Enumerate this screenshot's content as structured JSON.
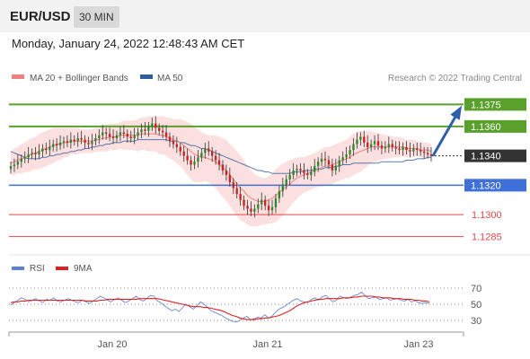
{
  "header": {
    "symbol": "EUR/USD",
    "timeframe": "30 MIN",
    "timestamp": "Monday, January 24, 2022 12:48:43 AM CET"
  },
  "legend": {
    "ma20_label": "MA 20 + Bollinger Bands",
    "ma50_label": "MA 50",
    "copyright": "Research © 2022 Trading Central",
    "ma20_color": "#f08080",
    "ma50_color": "#2e5e9e"
  },
  "rsi_legend": {
    "rsi_label": "RSI",
    "ma_label": "9MA",
    "rsi_color": "#5b7fd6",
    "ma_color": "#e02020"
  },
  "chart_data": [
    {
      "type": "candlestick",
      "title": "",
      "ylim": [
        1.1275,
        1.1385
      ],
      "x_ticks": [
        "Jan 20",
        "Jan 21",
        "Jan 23"
      ],
      "levels": [
        {
          "value": 1.1375,
          "label": "1.1375",
          "kind": "resistance",
          "color": "#5aa02c",
          "badge": true
        },
        {
          "value": 1.136,
          "label": "1.1360",
          "kind": "resistance",
          "color": "#5aa02c",
          "badge": true
        },
        {
          "value": 1.134,
          "label": "1.1340",
          "kind": "last",
          "color": "#333333",
          "badge": true
        },
        {
          "value": 1.132,
          "label": "1.1320",
          "kind": "support",
          "color": "#3f6fd8",
          "badge": true
        },
        {
          "value": 1.13,
          "label": "1.1300",
          "kind": "support",
          "color": "#e04848",
          "badge": false
        },
        {
          "value": 1.1285,
          "label": "1.1285",
          "kind": "support",
          "color": "#e04848",
          "badge": false
        }
      ],
      "close": [
        1.1333,
        1.1334,
        1.1336,
        1.1338,
        1.1339,
        1.1341,
        1.1342,
        1.1341,
        1.1343,
        1.1345,
        1.1344,
        1.1346,
        1.1348,
        1.1347,
        1.1349,
        1.135,
        1.1349,
        1.1351,
        1.135,
        1.1352,
        1.1351,
        1.1349,
        1.1348,
        1.135,
        1.1352,
        1.1354,
        1.1356,
        1.1355,
        1.1353,
        1.1352,
        1.1354,
        1.1356,
        1.1355,
        1.1353,
        1.1352,
        1.1354,
        1.1356,
        1.1358,
        1.1357,
        1.136,
        1.1362,
        1.1359,
        1.1357,
        1.1356,
        1.1353,
        1.135,
        1.1348,
        1.1346,
        1.1343,
        1.134,
        1.1337,
        1.1334,
        1.1336,
        1.1339,
        1.1342,
        1.1345,
        1.1343,
        1.134,
        1.1337,
        1.1334,
        1.133,
        1.1327,
        1.1322,
        1.1318,
        1.1314,
        1.131,
        1.1306,
        1.1304,
        1.1302,
        1.1304,
        1.1307,
        1.131,
        1.1306,
        1.1303,
        1.1305,
        1.1311,
        1.1316,
        1.132,
        1.1324,
        1.1327,
        1.133,
        1.1331,
        1.133,
        1.1328,
        1.1327,
        1.1329,
        1.1333,
        1.1336,
        1.1338,
        1.1337,
        1.1334,
        1.133,
        1.1333,
        1.1337,
        1.1339,
        1.1341,
        1.1344,
        1.1348,
        1.1351,
        1.1353,
        1.1349,
        1.1346,
        1.1348,
        1.135,
        1.1347,
        1.1345,
        1.1346,
        1.1348,
        1.1346,
        1.1345,
        1.1344,
        1.1346,
        1.1344,
        1.1343,
        1.1345,
        1.1344,
        1.1343,
        1.1342,
        1.1341,
        1.134
      ],
      "ma20": [
        1.1335,
        1.1336,
        1.1337,
        1.1338,
        1.1339,
        1.134,
        1.1341,
        1.1342,
        1.1343,
        1.1344,
        1.1345,
        1.1346,
        1.1347,
        1.1348,
        1.1348,
        1.1349,
        1.1349,
        1.135,
        1.135,
        1.135,
        1.135,
        1.135,
        1.135,
        1.135,
        1.1351,
        1.1351,
        1.1352,
        1.1352,
        1.1353,
        1.1353,
        1.1353,
        1.1354,
        1.1354,
        1.1354,
        1.1354,
        1.1354,
        1.1354,
        1.1355,
        1.1355,
        1.1355,
        1.1355,
        1.1355,
        1.1354,
        1.1354,
        1.1353,
        1.1352,
        1.1351,
        1.135,
        1.1349,
        1.1347,
        1.1345,
        1.1343,
        1.1341,
        1.134,
        1.1339,
        1.1339,
        1.1338,
        1.1337,
        1.1336,
        1.1334,
        1.1332,
        1.133,
        1.1327,
        1.1324,
        1.1321,
        1.1318,
        1.1316,
        1.1313,
        1.1311,
        1.131,
        1.1309,
        1.1309,
        1.1309,
        1.131,
        1.1311,
        1.1313,
        1.1315,
        1.1317,
        1.1319,
        1.1321,
        1.1323,
        1.1325,
        1.1326,
        1.1327,
        1.1328,
        1.1329,
        1.133,
        1.1331,
        1.1332,
        1.1333,
        1.1333,
        1.1334,
        1.1335,
        1.1336,
        1.1337,
        1.1338,
        1.1339,
        1.1341,
        1.1342,
        1.1343,
        1.1344,
        1.1345,
        1.1346,
        1.1346,
        1.1346,
        1.1346,
        1.1346,
        1.1346,
        1.1346,
        1.1346,
        1.1346,
        1.1346,
        1.1345,
        1.1345,
        1.1345,
        1.1345,
        1.1344,
        1.1344,
        1.1344,
        1.1343
      ],
      "ma50": [
        1.1343,
        1.1342,
        1.1341,
        1.134,
        1.1339,
        1.1338,
        1.1338,
        1.1338,
        1.1338,
        1.1339,
        1.1339,
        1.134,
        1.134,
        1.1341,
        1.1341,
        1.1342,
        1.1342,
        1.1343,
        1.1343,
        1.1344,
        1.1344,
        1.1345,
        1.1345,
        1.1346,
        1.1346,
        1.1347,
        1.1347,
        1.1348,
        1.1348,
        1.1349,
        1.1349,
        1.1349,
        1.135,
        1.135,
        1.135,
        1.135,
        1.1351,
        1.1351,
        1.1351,
        1.1351,
        1.1351,
        1.1351,
        1.1351,
        1.1351,
        1.1351,
        1.135,
        1.135,
        1.135,
        1.1349,
        1.1349,
        1.1348,
        1.1347,
        1.1347,
        1.1346,
        1.1345,
        1.1345,
        1.1344,
        1.1343,
        1.1342,
        1.1341,
        1.134,
        1.1339,
        1.1338,
        1.1337,
        1.1336,
        1.1335,
        1.1334,
        1.1333,
        1.1332,
        1.1331,
        1.133,
        1.133,
        1.1329,
        1.1329,
        1.1328,
        1.1328,
        1.1328,
        1.1328,
        1.1328,
        1.1328,
        1.1329,
        1.1329,
        1.1329,
        1.133,
        1.133,
        1.133,
        1.1331,
        1.1331,
        1.1331,
        1.1332,
        1.1332,
        1.1332,
        1.1333,
        1.1333,
        1.1334,
        1.1334,
        1.1334,
        1.1335,
        1.1335,
        1.1335,
        1.1335,
        1.1335,
        1.1335,
        1.1335,
        1.1335,
        1.1336,
        1.1336,
        1.1336,
        1.1336,
        1.1336,
        1.1336,
        1.1336,
        1.1337,
        1.1337,
        1.1337,
        1.1338,
        1.1338,
        1.1338,
        1.1339,
        1.1339
      ],
      "bb_width": [
        0.0008,
        0.0009,
        0.0009,
        0.001,
        0.001,
        0.0011,
        0.0011,
        0.0011,
        0.0012,
        0.0012,
        0.0012,
        0.0012,
        0.0012,
        0.0011,
        0.0011,
        0.001,
        0.001,
        0.0009,
        0.0009,
        0.0009,
        0.0008,
        0.0008,
        0.0008,
        0.0008,
        0.0008,
        0.0008,
        0.0009,
        0.0009,
        0.0009,
        0.0009,
        0.0009,
        0.0009,
        0.001,
        0.001,
        0.001,
        0.001,
        0.0011,
        0.0011,
        0.0011,
        0.0012,
        0.0012,
        0.0012,
        0.0013,
        0.0013,
        0.0013,
        0.0014,
        0.0014,
        0.0015,
        0.0016,
        0.0017,
        0.0018,
        0.0019,
        0.0019,
        0.0018,
        0.0017,
        0.0016,
        0.0016,
        0.0017,
        0.0018,
        0.0019,
        0.002,
        0.0021,
        0.0021,
        0.0022,
        0.0022,
        0.0022,
        0.0021,
        0.002,
        0.0019,
        0.0018,
        0.0017,
        0.0016,
        0.0016,
        0.0016,
        0.0017,
        0.0018,
        0.0018,
        0.0018,
        0.0017,
        0.0016,
        0.0015,
        0.0014,
        0.0013,
        0.0012,
        0.0012,
        0.0012,
        0.0012,
        0.0012,
        0.0013,
        0.0013,
        0.0013,
        0.0013,
        0.0013,
        0.0013,
        0.0013,
        0.0013,
        0.0014,
        0.0014,
        0.0014,
        0.0014,
        0.0013,
        0.0012,
        0.0011,
        0.001,
        0.0009,
        0.0009,
        0.0008,
        0.0008,
        0.0007,
        0.0007,
        0.0007,
        0.0006,
        0.0006,
        0.0006,
        0.0006,
        0.0005,
        0.0005,
        0.0005,
        0.0005,
        0.0005
      ],
      "projection": {
        "from": 1.134,
        "to": 1.1372
      }
    },
    {
      "type": "line",
      "title": "",
      "ylim": [
        20,
        80
      ],
      "y_ticks": [
        70,
        50,
        30
      ],
      "series": [
        {
          "name": "RSI",
          "values": [
            49,
            52,
            55,
            58,
            56,
            53,
            55,
            57,
            54,
            52,
            56,
            55,
            58,
            54,
            53,
            55,
            57,
            55,
            53,
            52,
            55,
            53,
            51,
            54,
            57,
            60,
            58,
            55,
            53,
            56,
            58,
            55,
            52,
            54,
            57,
            60,
            56,
            54,
            57,
            61,
            60,
            54,
            52,
            48,
            45,
            42,
            44,
            41,
            46,
            50,
            47,
            44,
            48,
            53,
            50,
            46,
            42,
            40,
            38,
            36,
            33,
            31,
            29,
            28,
            30,
            33,
            35,
            31,
            32,
            34,
            33,
            37,
            33,
            35,
            40,
            44,
            46,
            49,
            52,
            55,
            57,
            54,
            53,
            52,
            56,
            58,
            55,
            59,
            61,
            57,
            53,
            55,
            60,
            58,
            57,
            59,
            61,
            62,
            65,
            61,
            57,
            58,
            59,
            56,
            57,
            58,
            55,
            56,
            57,
            55,
            54,
            56,
            53,
            54,
            52,
            51,
            52,
            51
          ],
          "color": "#5b7fd6"
        },
        {
          "name": "9MA",
          "values": [
            52,
            53,
            53,
            54,
            54,
            55,
            55,
            55,
            55,
            55,
            55,
            55,
            55,
            55,
            55,
            55,
            55,
            55,
            55,
            55,
            55,
            54,
            54,
            54,
            54,
            55,
            55,
            56,
            56,
            56,
            56,
            56,
            56,
            56,
            56,
            56,
            57,
            57,
            57,
            57,
            57,
            57,
            56,
            55,
            54,
            53,
            52,
            51,
            50,
            49,
            48,
            47,
            47,
            47,
            46,
            46,
            45,
            44,
            43,
            42,
            40,
            38,
            36,
            35,
            33,
            32,
            31,
            31,
            31,
            32,
            32,
            33,
            33,
            34,
            35,
            36,
            38,
            40,
            42,
            45,
            48,
            50,
            52,
            53,
            54,
            55,
            56,
            56,
            57,
            57,
            57,
            57,
            57,
            58,
            58,
            58,
            59,
            59,
            60,
            60,
            60,
            60,
            59,
            59,
            58,
            58,
            58,
            57,
            57,
            57,
            56,
            56,
            56,
            55,
            55,
            54,
            54,
            53
          ],
          "color": "#e02020"
        }
      ]
    }
  ]
}
